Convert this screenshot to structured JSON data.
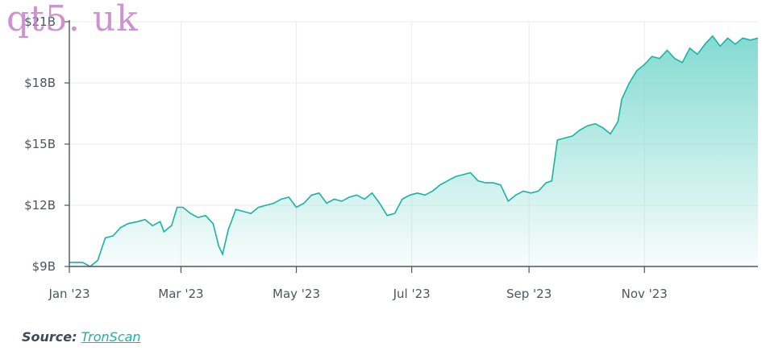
{
  "watermark": "qt5. uk",
  "source": {
    "label": "Source:",
    "link_text": "TronScan"
  },
  "colors": {
    "line": "#18b3a6",
    "fill_top": "#7dd9cf",
    "grid": "#ebebeb",
    "axis": "#4a5661"
  },
  "chart_data": {
    "type": "area",
    "title": "",
    "xlabel": "",
    "ylabel": "",
    "grid": true,
    "x_ticks": [
      "Jan '23",
      "Mar '23",
      "May '23",
      "Jul '23",
      "Sep '23",
      "Nov '23"
    ],
    "y_ticks": [
      "$9B",
      "$12B",
      "$15B",
      "$18B",
      "$21B"
    ],
    "y_tick_values": [
      9,
      12,
      15,
      18,
      21
    ],
    "ylim": [
      9,
      21
    ],
    "xlim": [
      "2023-01-01",
      "2023-12-31"
    ],
    "series": [
      {
        "values": [
          [
            "2023-01-01",
            9.2
          ],
          [
            "2023-01-08",
            9.2
          ],
          [
            "2023-01-12",
            9.0
          ],
          [
            "2023-01-16",
            9.3
          ],
          [
            "2023-01-20",
            10.4
          ],
          [
            "2023-01-24",
            10.5
          ],
          [
            "2023-01-28",
            10.9
          ],
          [
            "2023-02-01",
            11.1
          ],
          [
            "2023-02-06",
            11.2
          ],
          [
            "2023-02-10",
            11.3
          ],
          [
            "2023-02-14",
            11.0
          ],
          [
            "2023-02-18",
            11.2
          ],
          [
            "2023-02-20",
            10.7
          ],
          [
            "2023-02-24",
            11.0
          ],
          [
            "2023-02-27",
            11.9
          ],
          [
            "2023-03-02",
            11.9
          ],
          [
            "2023-03-06",
            11.6
          ],
          [
            "2023-03-10",
            11.4
          ],
          [
            "2023-03-14",
            11.5
          ],
          [
            "2023-03-18",
            11.1
          ],
          [
            "2023-03-21",
            10.0
          ],
          [
            "2023-03-23",
            9.6
          ],
          [
            "2023-03-26",
            10.8
          ],
          [
            "2023-03-30",
            11.8
          ],
          [
            "2023-04-03",
            11.7
          ],
          [
            "2023-04-07",
            11.6
          ],
          [
            "2023-04-11",
            11.9
          ],
          [
            "2023-04-15",
            12.0
          ],
          [
            "2023-04-19",
            12.1
          ],
          [
            "2023-04-23",
            12.3
          ],
          [
            "2023-04-27",
            12.4
          ],
          [
            "2023-05-01",
            11.9
          ],
          [
            "2023-05-05",
            12.1
          ],
          [
            "2023-05-09",
            12.5
          ],
          [
            "2023-05-13",
            12.6
          ],
          [
            "2023-05-17",
            12.1
          ],
          [
            "2023-05-21",
            12.3
          ],
          [
            "2023-05-25",
            12.2
          ],
          [
            "2023-05-29",
            12.4
          ],
          [
            "2023-06-02",
            12.5
          ],
          [
            "2023-06-06",
            12.3
          ],
          [
            "2023-06-10",
            12.6
          ],
          [
            "2023-06-14",
            12.1
          ],
          [
            "2023-06-18",
            11.5
          ],
          [
            "2023-06-22",
            11.6
          ],
          [
            "2023-06-26",
            12.3
          ],
          [
            "2023-06-30",
            12.5
          ],
          [
            "2023-07-04",
            12.6
          ],
          [
            "2023-07-08",
            12.5
          ],
          [
            "2023-07-12",
            12.7
          ],
          [
            "2023-07-16",
            13.0
          ],
          [
            "2023-07-20",
            13.2
          ],
          [
            "2023-07-24",
            13.4
          ],
          [
            "2023-07-28",
            13.5
          ],
          [
            "2023-08-01",
            13.6
          ],
          [
            "2023-08-05",
            13.2
          ],
          [
            "2023-08-09",
            13.1
          ],
          [
            "2023-08-13",
            13.1
          ],
          [
            "2023-08-17",
            13.0
          ],
          [
            "2023-08-21",
            12.2
          ],
          [
            "2023-08-25",
            12.5
          ],
          [
            "2023-08-29",
            12.7
          ],
          [
            "2023-09-02",
            12.6
          ],
          [
            "2023-09-06",
            12.7
          ],
          [
            "2023-09-10",
            13.1
          ],
          [
            "2023-09-13",
            13.2
          ],
          [
            "2023-09-16",
            15.2
          ],
          [
            "2023-09-20",
            15.3
          ],
          [
            "2023-09-24",
            15.4
          ],
          [
            "2023-09-28",
            15.7
          ],
          [
            "2023-10-02",
            15.9
          ],
          [
            "2023-10-06",
            16.0
          ],
          [
            "2023-10-10",
            15.8
          ],
          [
            "2023-10-14",
            15.5
          ],
          [
            "2023-10-18",
            16.1
          ],
          [
            "2023-10-20",
            17.2
          ],
          [
            "2023-10-24",
            18.0
          ],
          [
            "2023-10-28",
            18.6
          ],
          [
            "2023-11-01",
            18.9
          ],
          [
            "2023-11-05",
            19.3
          ],
          [
            "2023-11-09",
            19.2
          ],
          [
            "2023-11-13",
            19.6
          ],
          [
            "2023-11-17",
            19.2
          ],
          [
            "2023-11-21",
            19.0
          ],
          [
            "2023-11-25",
            19.7
          ],
          [
            "2023-11-29",
            19.4
          ],
          [
            "2023-12-03",
            19.9
          ],
          [
            "2023-12-07",
            20.3
          ],
          [
            "2023-12-11",
            19.8
          ],
          [
            "2023-12-15",
            20.2
          ],
          [
            "2023-12-19",
            19.9
          ],
          [
            "2023-12-23",
            20.2
          ],
          [
            "2023-12-27",
            20.1
          ],
          [
            "2023-12-31",
            20.2
          ]
        ]
      }
    ]
  }
}
